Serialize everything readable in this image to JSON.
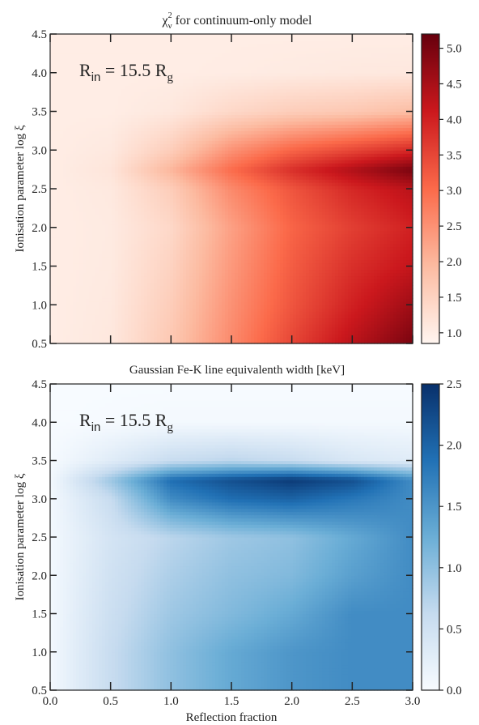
{
  "chart_data": [
    {
      "type": "heatmap",
      "title": "χ²ν for continuum-only model",
      "title_main": "χ",
      "title_sup": "2",
      "title_sub": "ν",
      "title_rest": " for continuum-only model",
      "annotation": {
        "main": "R",
        "sub1": "in",
        "eq": " = 15.5 R",
        "sub2": "g"
      },
      "ylabel": "Ionisation parameter log ξ",
      "xlabel": "",
      "xlim": [
        0.0,
        3.0
      ],
      "ylim": [
        0.5,
        4.5
      ],
      "xticks": [
        0.0,
        0.5,
        1.0,
        1.5,
        2.0,
        2.5,
        3.0
      ],
      "xtick_labels_visible": false,
      "yticks": [
        "0.5",
        "1.0",
        "1.5",
        "2.0",
        "2.5",
        "3.0",
        "3.5",
        "4.0",
        "4.5"
      ],
      "colormap": "Reds",
      "colorbar": {
        "range": [
          0.85,
          5.2
        ],
        "ticks": [
          "1.0",
          "1.5",
          "2.0",
          "2.5",
          "3.0",
          "3.5",
          "4.0",
          "4.5",
          "5.0"
        ],
        "colors": [
          "#fff5f0",
          "#fcbba1",
          "#fb6a4a",
          "#cb181d",
          "#67000d"
        ]
      },
      "x": [
        0.0,
        0.5,
        1.0,
        1.5,
        2.0,
        2.5,
        3.0
      ],
      "y": [
        0.5,
        1.0,
        1.5,
        2.0,
        2.5,
        2.75,
        3.0,
        3.5,
        4.0,
        4.5
      ],
      "z": [
        [
          1.0,
          1.1,
          1.7,
          2.6,
          3.5,
          4.3,
          5.0
        ],
        [
          1.0,
          1.08,
          1.6,
          2.5,
          3.3,
          4.0,
          4.6
        ],
        [
          1.0,
          1.06,
          1.5,
          2.4,
          3.2,
          3.8,
          4.2
        ],
        [
          1.0,
          1.05,
          1.4,
          2.3,
          3.1,
          3.6,
          4.0
        ],
        [
          1.0,
          1.08,
          1.6,
          2.6,
          3.3,
          3.9,
          4.3
        ],
        [
          1.0,
          1.15,
          2.0,
          3.0,
          3.8,
          4.4,
          5.0
        ],
        [
          1.0,
          1.08,
          1.6,
          2.5,
          3.1,
          3.5,
          3.9
        ],
        [
          1.0,
          1.0,
          1.1,
          1.4,
          1.6,
          1.7,
          1.9
        ],
        [
          1.0,
          1.0,
          1.0,
          1.02,
          1.05,
          1.08,
          1.1
        ],
        [
          1.0,
          1.0,
          1.0,
          1.0,
          1.0,
          1.0,
          1.0
        ]
      ]
    },
    {
      "type": "heatmap",
      "title": "Gaussian Fe-K line equivalenth width [keV]",
      "annotation": {
        "main": "R",
        "sub1": "in",
        "eq": " = 15.5 R",
        "sub2": "g"
      },
      "ylabel": "Ionisation parameter log ξ",
      "xlabel": "Reflection fraction",
      "xlim": [
        0.0,
        3.0
      ],
      "ylim": [
        0.5,
        4.5
      ],
      "xticks": [
        0.0,
        0.5,
        1.0,
        1.5,
        2.0,
        2.5,
        3.0
      ],
      "xtick_labels": [
        "0.0",
        "0.5",
        "1.0",
        "1.5",
        "2.0",
        "2.5",
        "3.0"
      ],
      "xtick_labels_visible": true,
      "yticks": [
        "0.5",
        "1.0",
        "1.5",
        "2.0",
        "2.5",
        "3.0",
        "3.5",
        "4.0",
        "4.5"
      ],
      "colormap": "Blues",
      "colorbar": {
        "range": [
          0.0,
          2.5
        ],
        "ticks": [
          "0.0",
          "0.5",
          "1.0",
          "1.5",
          "2.0",
          "2.5"
        ],
        "colors": [
          "#f7fbff",
          "#c6dbef",
          "#6baed6",
          "#2171b5",
          "#08306b"
        ]
      },
      "x": [
        0.0,
        0.5,
        1.0,
        1.5,
        2.0,
        2.5,
        3.0
      ],
      "y": [
        0.5,
        1.0,
        1.5,
        2.0,
        2.5,
        3.0,
        3.25,
        3.5,
        4.0,
        4.5
      ],
      "z": [
        [
          0.05,
          0.6,
          1.0,
          1.3,
          1.5,
          1.6,
          1.6
        ],
        [
          0.05,
          0.6,
          1.0,
          1.3,
          1.5,
          1.6,
          1.6
        ],
        [
          0.05,
          0.55,
          0.9,
          1.1,
          1.3,
          1.6,
          1.6
        ],
        [
          0.05,
          0.5,
          0.8,
          1.0,
          1.1,
          1.4,
          1.6
        ],
        [
          0.05,
          0.45,
          0.7,
          0.9,
          1.0,
          1.3,
          1.6
        ],
        [
          0.05,
          0.6,
          1.6,
          1.9,
          2.0,
          1.8,
          1.6
        ],
        [
          0.05,
          0.9,
          1.9,
          2.2,
          2.4,
          2.2,
          1.6
        ],
        [
          0.02,
          0.3,
          0.6,
          0.7,
          0.6,
          0.4,
          0.3
        ],
        [
          0.0,
          0.02,
          0.05,
          0.05,
          0.05,
          0.05,
          0.05
        ],
        [
          0.0,
          0.0,
          0.0,
          0.0,
          0.0,
          0.0,
          0.0
        ]
      ]
    }
  ]
}
